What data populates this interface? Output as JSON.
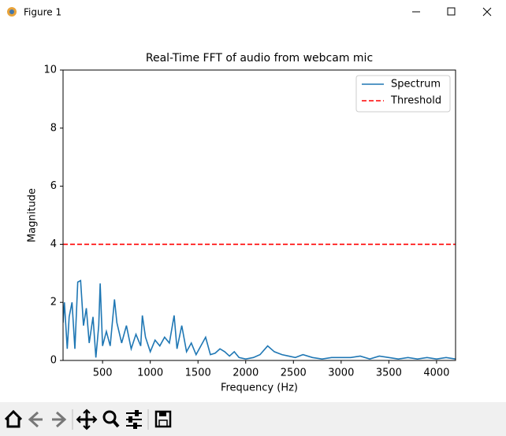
{
  "window": {
    "title": "Figure 1"
  },
  "chart_data": {
    "type": "line",
    "title": "Real-Time FFT of audio from webcam mic",
    "x_label": "Frequency (Hz)",
    "y_label": "Magnitude",
    "xlim": [
      86,
      4199
    ],
    "ylim": [
      0,
      10
    ],
    "xticks": [
      500,
      1000,
      1500,
      2000,
      2500,
      3000,
      3500,
      4000
    ],
    "yticks": [
      0,
      2,
      4,
      6,
      8,
      10
    ],
    "legend": "upper right",
    "series": [
      {
        "name": "Spectrum",
        "color": "#1f77b4",
        "style": "solid",
        "x": [
          86,
          100,
          130,
          150,
          180,
          210,
          240,
          270,
          300,
          330,
          360,
          400,
          430,
          460,
          475,
          500,
          540,
          580,
          625,
          650,
          700,
          750,
          800,
          850,
          900,
          917,
          950,
          1000,
          1050,
          1100,
          1150,
          1200,
          1250,
          1280,
          1330,
          1380,
          1430,
          1480,
          1530,
          1580,
          1630,
          1680,
          1730,
          1780,
          1830,
          1880,
          1930,
          2000,
          2080,
          2150,
          2230,
          2300,
          2380,
          2450,
          2520,
          2600,
          2700,
          2800,
          2900,
          3000,
          3100,
          3200,
          3300,
          3400,
          3500,
          3600,
          3700,
          3800,
          3900,
          4000,
          4100,
          4199
        ],
        "values": [
          1.3,
          2.0,
          0.4,
          1.5,
          2.0,
          0.4,
          2.7,
          2.75,
          1.2,
          1.8,
          0.6,
          1.5,
          0.1,
          1.2,
          2.65,
          0.5,
          1.0,
          0.5,
          2.1,
          1.3,
          0.6,
          1.2,
          0.4,
          0.9,
          0.5,
          1.55,
          0.8,
          0.3,
          0.7,
          0.5,
          0.8,
          0.6,
          1.55,
          0.4,
          1.2,
          0.3,
          0.6,
          0.2,
          0.5,
          0.8,
          0.2,
          0.25,
          0.4,
          0.3,
          0.15,
          0.3,
          0.1,
          0.05,
          0.1,
          0.2,
          0.5,
          0.3,
          0.2,
          0.15,
          0.1,
          0.2,
          0.1,
          0.05,
          0.1,
          0.1,
          0.1,
          0.15,
          0.05,
          0.15,
          0.1,
          0.05,
          0.1,
          0.05,
          0.1,
          0.05,
          0.1,
          0.05
        ]
      },
      {
        "name": "Threshold",
        "color": "#ff0000",
        "style": "dashed",
        "x": [
          86,
          4199
        ],
        "values": [
          4,
          4
        ]
      }
    ]
  }
}
